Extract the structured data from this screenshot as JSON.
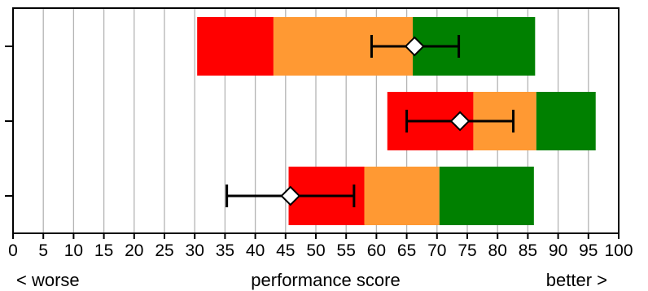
{
  "chart_data": {
    "type": "bar",
    "orientation": "horizontal",
    "xlabel": "performance score",
    "xlabel_left": "< worse",
    "xlabel_right": "better >",
    "xlim": [
      0,
      100
    ],
    "xticks": [
      0,
      5,
      10,
      15,
      20,
      25,
      30,
      35,
      40,
      45,
      50,
      55,
      60,
      65,
      70,
      75,
      80,
      85,
      90,
      95,
      100
    ],
    "grid": "vertical",
    "colors": {
      "low": "#ff0000",
      "mid": "#ff9933",
      "high": "#008000"
    },
    "rows": [
      {
        "segments": [
          {
            "band": "low",
            "from": 30.4,
            "to": 43.0
          },
          {
            "band": "mid",
            "from": 43.0,
            "to": 66.0
          },
          {
            "band": "high",
            "from": 66.0,
            "to": 86.2
          }
        ],
        "point": 66.3,
        "error": [
          59.2,
          73.6
        ]
      },
      {
        "segments": [
          {
            "band": "low",
            "from": 61.8,
            "to": 76.0
          },
          {
            "band": "mid",
            "from": 76.0,
            "to": 86.4
          },
          {
            "band": "high",
            "from": 86.4,
            "to": 96.2
          }
        ],
        "point": 73.8,
        "error": [
          65.0,
          82.6
        ]
      },
      {
        "segments": [
          {
            "band": "low",
            "from": 45.5,
            "to": 58.0
          },
          {
            "band": "mid",
            "from": 58.0,
            "to": 70.4
          },
          {
            "band": "high",
            "from": 70.4,
            "to": 86.0
          }
        ],
        "point": 45.8,
        "error": [
          35.3,
          56.3
        ]
      }
    ]
  }
}
